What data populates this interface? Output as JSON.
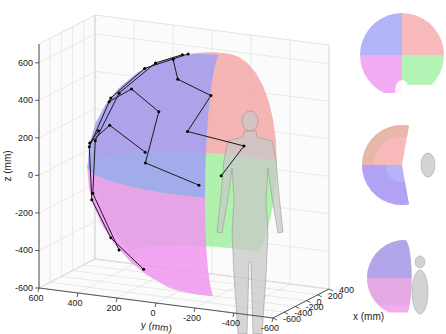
{
  "chart_data": {
    "type": "surface3d",
    "x_label": "x (mm)",
    "y_label": "y (mm)",
    "z_label": "z (mm)",
    "xlim": [
      -600,
      400
    ],
    "ylim": [
      -600,
      600
    ],
    "zlim": [
      -600,
      700
    ],
    "xticks": [
      -600,
      -400,
      -200,
      0,
      200,
      400
    ],
    "yticks": [
      -600,
      -400,
      -200,
      0,
      200,
      400,
      600
    ],
    "zticks": [
      -600,
      -400,
      -200,
      0,
      200,
      400,
      600
    ],
    "grid": true,
    "sphere": {
      "center": [
        0,
        -150,
        0
      ],
      "radius": 650
    },
    "regions": [
      {
        "color": "#a0a0f5",
        "azimuth": [
          -100,
          0
        ],
        "elevation": [
          0,
          90
        ]
      },
      {
        "color": "#f5a8a8",
        "azimuth": [
          0,
          100
        ],
        "elevation": [
          0,
          90
        ]
      },
      {
        "color": "#f096f0",
        "azimuth": [
          -100,
          0
        ],
        "elevation": [
          -65,
          0
        ]
      },
      {
        "color": "#a0f0a0",
        "azimuth": [
          0,
          100
        ],
        "elevation": [
          -45,
          0
        ]
      }
    ],
    "trajectories": [
      {
        "azimuth": [
          10,
          -5,
          -15,
          -20,
          -20,
          -15,
          -10
        ],
        "elevation": [
          75,
          55,
          35,
          10,
          -15,
          -35,
          -55
        ]
      },
      {
        "azimuth": [
          20,
          0,
          -25,
          -30,
          -30,
          -25
        ],
        "elevation": [
          70,
          60,
          40,
          15,
          -10,
          -40
        ]
      },
      {
        "azimuth": [
          30,
          50,
          70,
          60,
          85,
          75
        ],
        "elevation": [
          60,
          40,
          30,
          10,
          5,
          -10
        ]
      },
      {
        "azimuth": [
          0,
          20,
          45,
          40,
          65
        ],
        "elevation": [
          30,
          35,
          20,
          -5,
          -15
        ]
      },
      {
        "azimuth": [
          -30,
          -10,
          15,
          40
        ],
        "elevation": [
          20,
          10,
          15,
          0
        ]
      }
    ]
  }
}
